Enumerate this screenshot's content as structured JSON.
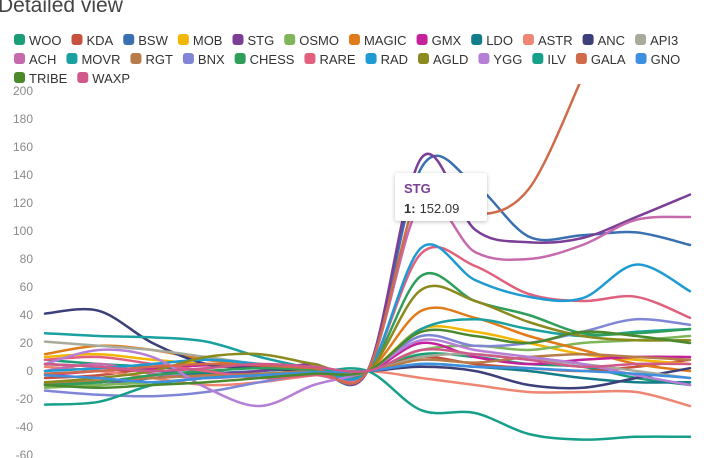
{
  "chart_data": {
    "type": "line",
    "title": "Detailed view",
    "categories": [
      null,
      null,
      null,
      null,
      null,
      null,
      null,
      null,
      null,
      null,
      null,
      null,
      null
    ],
    "ylim": [
      -60,
      200
    ],
    "yticks": [
      -60,
      -40,
      -20,
      0,
      20,
      40,
      60,
      80,
      100,
      120,
      140,
      160,
      180,
      200
    ],
    "grid": false,
    "tooltip": {
      "title": "STG",
      "label": "1:",
      "value": 152.09
    },
    "series": [
      {
        "name": "WOO",
        "color": "#1b9e77",
        "values": [
          8,
          5,
          3,
          0,
          -3,
          -2,
          0,
          12,
          10,
          5,
          3,
          -5,
          -10
        ]
      },
      {
        "name": "KDA",
        "color": "#c5523f",
        "values": [
          -5,
          -3,
          2,
          5,
          3,
          1,
          0,
          10,
          5,
          2,
          0,
          3,
          8
        ]
      },
      {
        "name": "BSW",
        "color": "#3a6fb0",
        "values": [
          -8,
          -10,
          -5,
          -2,
          0,
          2,
          0,
          145,
          133,
          96,
          97,
          99,
          90
        ]
      },
      {
        "name": "MOB",
        "color": "#f2b705",
        "values": [
          10,
          12,
          8,
          5,
          3,
          1,
          0,
          30,
          28,
          20,
          12,
          8,
          5
        ]
      },
      {
        "name": "STG",
        "color": "#7b3f98",
        "values": [
          -10,
          -8,
          -5,
          -3,
          0,
          5,
          0,
          152.09,
          101,
          92,
          95,
          110,
          126
        ]
      },
      {
        "name": "OSMO",
        "color": "#7fb65a",
        "values": [
          -12,
          -10,
          -8,
          -5,
          -2,
          0,
          0,
          15,
          18,
          15,
          20,
          22,
          25
        ]
      },
      {
        "name": "MAGIC",
        "color": "#e07b1a",
        "values": [
          12,
          18,
          15,
          8,
          3,
          0,
          0,
          43,
          38,
          25,
          15,
          5,
          0
        ]
      },
      {
        "name": "GMX",
        "color": "#c4219a",
        "values": [
          -3,
          0,
          2,
          4,
          3,
          2,
          0,
          20,
          10,
          5,
          8,
          10,
          10
        ]
      },
      {
        "name": "LDO",
        "color": "#137d8a",
        "values": [
          5,
          3,
          0,
          -2,
          -3,
          -2,
          0,
          5,
          3,
          0,
          -5,
          -8,
          -8
        ]
      },
      {
        "name": "ASTR",
        "color": "#ee8673",
        "values": [
          3,
          0,
          -5,
          -10,
          -8,
          -3,
          0,
          -5,
          -10,
          -15,
          -15,
          -15,
          -25
        ]
      },
      {
        "name": "ANC",
        "color": "#3c3f7a",
        "values": [
          41,
          43,
          20,
          5,
          2,
          0,
          0,
          3,
          0,
          -10,
          -12,
          -5,
          2
        ]
      },
      {
        "name": "API3",
        "color": "#a8ab9a",
        "values": [
          21,
          18,
          15,
          10,
          5,
          2,
          0,
          10,
          12,
          8,
          5,
          0,
          -5
        ]
      },
      {
        "name": "ACH",
        "color": "#c76aad",
        "values": [
          0,
          5,
          -2,
          -5,
          -3,
          0,
          0,
          120,
          85,
          80,
          90,
          108,
          110
        ]
      },
      {
        "name": "MOVR",
        "color": "#1aa0a0",
        "values": [
          27,
          25,
          24,
          21,
          10,
          2,
          0,
          30,
          37,
          30,
          25,
          28,
          30
        ]
      },
      {
        "name": "RGT",
        "color": "#b87c4b",
        "values": [
          -9,
          -7,
          -5,
          -3,
          -2,
          0,
          0,
          8,
          6,
          10,
          12,
          10,
          8
        ]
      },
      {
        "name": "BNX",
        "color": "#7f86d6",
        "values": [
          -14,
          -17,
          -18,
          -15,
          -8,
          -2,
          0,
          25,
          18,
          20,
          28,
          37,
          33
        ]
      },
      {
        "name": "CHESS",
        "color": "#2e9e5a",
        "values": [
          -10,
          -8,
          -3,
          0,
          2,
          1,
          0,
          68,
          50,
          40,
          27,
          27,
          30
        ]
      },
      {
        "name": "RARE",
        "color": "#e0607e",
        "values": [
          8,
          10,
          5,
          0,
          -5,
          -3,
          0,
          84,
          75,
          55,
          50,
          53,
          38
        ]
      },
      {
        "name": "RAD",
        "color": "#1e9bd2",
        "values": [
          0,
          2,
          5,
          8,
          5,
          2,
          0,
          88,
          65,
          53,
          52,
          76,
          57
        ]
      },
      {
        "name": "AGLD",
        "color": "#8a8a1f",
        "values": [
          -8,
          -5,
          0,
          10,
          12,
          5,
          0,
          58,
          50,
          35,
          25,
          22,
          22
        ]
      },
      {
        "name": "YGG",
        "color": "#b57fd6",
        "values": [
          5,
          15,
          10,
          -12,
          -25,
          -10,
          0,
          22,
          15,
          10,
          5,
          -3,
          -10
        ]
      },
      {
        "name": "ILV",
        "color": "#16a08a",
        "values": [
          -24,
          -22,
          -10,
          -5,
          -3,
          -1,
          0,
          -28,
          -30,
          -45,
          -49,
          -47,
          -47
        ]
      },
      {
        "name": "GALA",
        "color": "#cf6b4a",
        "values": [
          -2,
          0,
          3,
          5,
          4,
          2,
          0,
          130,
          112,
          130,
          210,
          null,
          null
        ]
      },
      {
        "name": "GNO",
        "color": "#3f8fe0",
        "values": [
          -3,
          -5,
          -8,
          -5,
          -3,
          -1,
          0,
          5,
          3,
          2,
          0,
          -2,
          -5
        ]
      },
      {
        "name": "TRIBE",
        "color": "#4a8a2d",
        "values": [
          -10,
          -12,
          -10,
          -8,
          -5,
          -2,
          0,
          28,
          25,
          20,
          28,
          25,
          20
        ]
      },
      {
        "name": "WAXP",
        "color": "#cf5a8a",
        "values": [
          5,
          3,
          0,
          2,
          5,
          3,
          0,
          15,
          12,
          8,
          3,
          5,
          5
        ]
      }
    ]
  }
}
